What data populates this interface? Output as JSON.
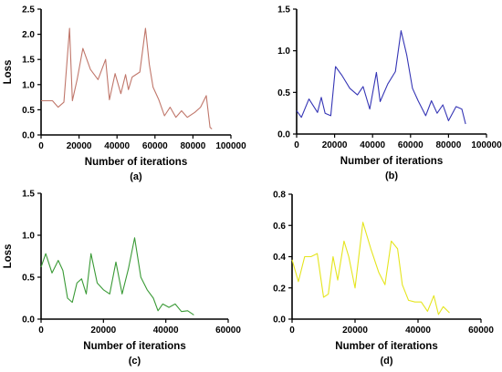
{
  "chart_data": [
    {
      "type": "line",
      "panel_label": "(a)",
      "xlabel": "Number of iterations",
      "ylabel": "Loss",
      "xlim": [
        0,
        100000
      ],
      "ylim": [
        0,
        2.5
      ],
      "xticks": [
        0,
        20000,
        40000,
        60000,
        80000,
        100000
      ],
      "yticks": [
        0.0,
        0.5,
        1.0,
        1.5,
        2.0,
        2.5
      ],
      "ytick_labels": [
        "0.0",
        "0.5",
        "1.0",
        "1.5",
        "2.0",
        "2.5"
      ],
      "color": "#c0776b",
      "series": [
        {
          "x": [
            0,
            6000,
            9000,
            12000,
            15000,
            16500,
            19000,
            22000,
            26000,
            30000,
            34000,
            36000,
            39000,
            42000,
            44500,
            46000,
            48000,
            52000,
            55000,
            57000,
            59000,
            62000,
            65000,
            68000,
            71000,
            74000,
            77000,
            81000,
            84000,
            87000,
            89000,
            90000
          ],
          "y": [
            0.68,
            0.68,
            0.55,
            0.65,
            2.12,
            0.68,
            1.1,
            1.72,
            1.3,
            1.1,
            1.5,
            0.7,
            1.22,
            0.82,
            1.2,
            0.9,
            1.15,
            1.25,
            2.12,
            1.4,
            0.95,
            0.7,
            0.38,
            0.55,
            0.35,
            0.48,
            0.35,
            0.45,
            0.55,
            0.78,
            0.15,
            0.12
          ]
        }
      ]
    },
    {
      "type": "line",
      "panel_label": "(b)",
      "xlabel": "Number of iterations",
      "ylabel": "",
      "xlim": [
        0,
        100000
      ],
      "ylim": [
        0,
        1.5
      ],
      "xticks": [
        0,
        20000,
        40000,
        60000,
        80000,
        100000
      ],
      "yticks": [
        0.0,
        0.5,
        1.0,
        1.5
      ],
      "ytick_labels": [
        "0.0",
        "0.5",
        "1.0",
        "1.5"
      ],
      "color": "#3535b5",
      "series": [
        {
          "x": [
            0,
            2500,
            6500,
            11000,
            13000,
            15000,
            18000,
            20500,
            24000,
            28000,
            32000,
            35000,
            38500,
            42000,
            44000,
            48000,
            52000,
            55000,
            58000,
            61000,
            64000,
            68000,
            71000,
            74000,
            77000,
            80000,
            84000,
            87000,
            89000
          ],
          "y": [
            0.28,
            0.2,
            0.42,
            0.26,
            0.44,
            0.25,
            0.22,
            0.81,
            0.7,
            0.55,
            0.47,
            0.57,
            0.3,
            0.74,
            0.39,
            0.6,
            0.75,
            1.24,
            0.95,
            0.55,
            0.4,
            0.22,
            0.4,
            0.25,
            0.35,
            0.16,
            0.33,
            0.3,
            0.12
          ]
        }
      ]
    },
    {
      "type": "line",
      "panel_label": "(c)",
      "xlabel": "Number of iterations",
      "ylabel": "Loss",
      "xlim": [
        0,
        60000
      ],
      "ylim": [
        0,
        1.5
      ],
      "xticks": [
        0,
        20000,
        40000,
        60000
      ],
      "yticks": [
        0.0,
        0.5,
        1.0,
        1.5
      ],
      "ytick_labels": [
        "0.0",
        "0.5",
        "1.0",
        "1.5"
      ],
      "color": "#3a9a36",
      "series": [
        {
          "x": [
            0,
            1500,
            3500,
            5500,
            7000,
            8500,
            10000,
            11500,
            13000,
            14500,
            16000,
            18000,
            20000,
            22000,
            24000,
            26000,
            28000,
            30000,
            32000,
            34000,
            36000,
            37500,
            39000,
            41000,
            43000,
            45000,
            47000,
            49000
          ],
          "y": [
            0.62,
            0.78,
            0.55,
            0.7,
            0.58,
            0.25,
            0.2,
            0.43,
            0.48,
            0.3,
            0.78,
            0.43,
            0.35,
            0.3,
            0.68,
            0.3,
            0.6,
            0.97,
            0.5,
            0.35,
            0.25,
            0.1,
            0.18,
            0.14,
            0.18,
            0.09,
            0.1,
            0.05
          ]
        }
      ]
    },
    {
      "type": "line",
      "panel_label": "(d)",
      "xlabel": "Number of iterations",
      "ylabel": "",
      "xlim": [
        0,
        60000
      ],
      "ylim": [
        0,
        0.8
      ],
      "xticks": [
        0,
        20000,
        40000,
        60000
      ],
      "yticks": [
        0.0,
        0.2,
        0.4,
        0.6,
        0.8
      ],
      "ytick_labels": [
        "0.0",
        "0.2",
        "0.4",
        "0.6",
        "0.8"
      ],
      "color": "#e5e51e",
      "series": [
        {
          "x": [
            0,
            2000,
            4000,
            6000,
            8000,
            10000,
            11500,
            13000,
            14500,
            16500,
            18000,
            20000,
            22500,
            25000,
            27500,
            29500,
            31500,
            33500,
            35000,
            37000,
            39000,
            41000,
            43000,
            45000,
            46500,
            48000,
            50000
          ],
          "y": [
            0.38,
            0.24,
            0.4,
            0.4,
            0.42,
            0.14,
            0.16,
            0.4,
            0.25,
            0.5,
            0.4,
            0.2,
            0.62,
            0.45,
            0.3,
            0.22,
            0.5,
            0.45,
            0.22,
            0.12,
            0.11,
            0.11,
            0.05,
            0.15,
            0.03,
            0.08,
            0.04
          ]
        }
      ]
    }
  ]
}
